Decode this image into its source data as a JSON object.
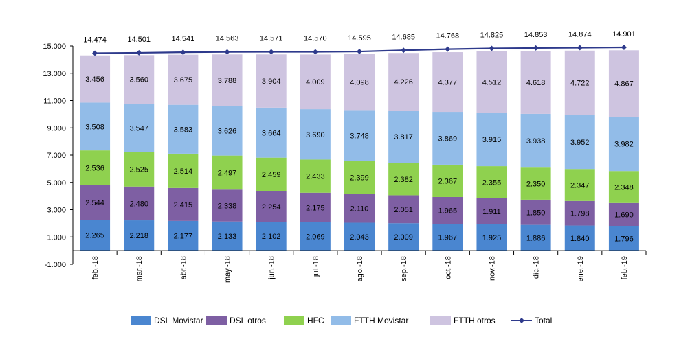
{
  "chart_data": {
    "type": "bar",
    "stacked": true,
    "title": "",
    "xlabel": "",
    "ylabel": "",
    "ylim": [
      -1000,
      15000
    ],
    "yticks": [
      -1000,
      1000,
      3000,
      5000,
      7000,
      9000,
      11000,
      13000,
      15000
    ],
    "ytick_labels": [
      "-1.000",
      "1.000",
      "3.000",
      "5.000",
      "7.000",
      "9.000",
      "11.000",
      "13.000",
      "15.000"
    ],
    "grid": false,
    "legend_position": "bottom",
    "categories": [
      "feb.-18",
      "mar.-18",
      "abr.-18",
      "may.-18",
      "jun.-18",
      "jul.-18",
      "ago.-18",
      "sep.-18",
      "oct.-18",
      "nov.-18",
      "dic.-18",
      "ene.-19",
      "feb.-19"
    ],
    "series": [
      {
        "name": "DSL Movistar",
        "color": "#4A86D0",
        "values": [
          2265,
          2218,
          2177,
          2133,
          2102,
          2069,
          2043,
          2009,
          1967,
          1925,
          1886,
          1840,
          1796
        ],
        "labels": [
          "2.265",
          "2.218",
          "2.177",
          "2.133",
          "2.102",
          "2.069",
          "2.043",
          "2.009",
          "1.967",
          "1.925",
          "1.886",
          "1.840",
          "1.796"
        ]
      },
      {
        "name": "DSL otros",
        "color": "#7E5FA3",
        "values": [
          2544,
          2480,
          2415,
          2338,
          2254,
          2175,
          2110,
          2051,
          1965,
          1911,
          1850,
          1798,
          1690
        ],
        "labels": [
          "2.544",
          "2.480",
          "2.415",
          "2.338",
          "2.254",
          "2.175",
          "2.110",
          "2.051",
          "1.965",
          "1.911",
          "1.850",
          "1.798",
          "1.690"
        ]
      },
      {
        "name": "HFC",
        "color": "#8FD14F",
        "values": [
          2536,
          2525,
          2514,
          2497,
          2459,
          2433,
          2399,
          2382,
          2367,
          2355,
          2350,
          2347,
          2348
        ],
        "labels": [
          "2.536",
          "2.525",
          "2.514",
          "2.497",
          "2.459",
          "2.433",
          "2.399",
          "2.382",
          "2.367",
          "2.355",
          "2.350",
          "2.347",
          "2.348"
        ]
      },
      {
        "name": "FTTH Movistar",
        "color": "#92BCE8",
        "values": [
          3508,
          3547,
          3583,
          3626,
          3664,
          3690,
          3748,
          3817,
          3869,
          3915,
          3938,
          3952,
          3982
        ],
        "labels": [
          "3.508",
          "3.547",
          "3.583",
          "3.626",
          "3.664",
          "3.690",
          "3.748",
          "3.817",
          "3.869",
          "3.915",
          "3.938",
          "3.952",
          "3.982"
        ]
      },
      {
        "name": "FTTH otros",
        "color": "#CEC4E0",
        "values": [
          3456,
          3560,
          3675,
          3788,
          3904,
          4009,
          4098,
          4226,
          4377,
          4512,
          4618,
          4722,
          4867
        ],
        "labels": [
          "3.456",
          "3.560",
          "3.675",
          "3.788",
          "3.904",
          "4.009",
          "4.098",
          "4.226",
          "4.377",
          "4.512",
          "4.618",
          "4.722",
          "4.867"
        ]
      }
    ],
    "total": {
      "name": "Total",
      "color": "#2E3A8C",
      "values": [
        14474,
        14501,
        14541,
        14563,
        14571,
        14570,
        14595,
        14685,
        14768,
        14825,
        14853,
        14874,
        14901
      ],
      "labels": [
        "14.474",
        "14.501",
        "14.541",
        "14.563",
        "14.571",
        "14.570",
        "14.595",
        "14.685",
        "14.768",
        "14.825",
        "14.853",
        "14.874",
        "14.901"
      ]
    }
  }
}
